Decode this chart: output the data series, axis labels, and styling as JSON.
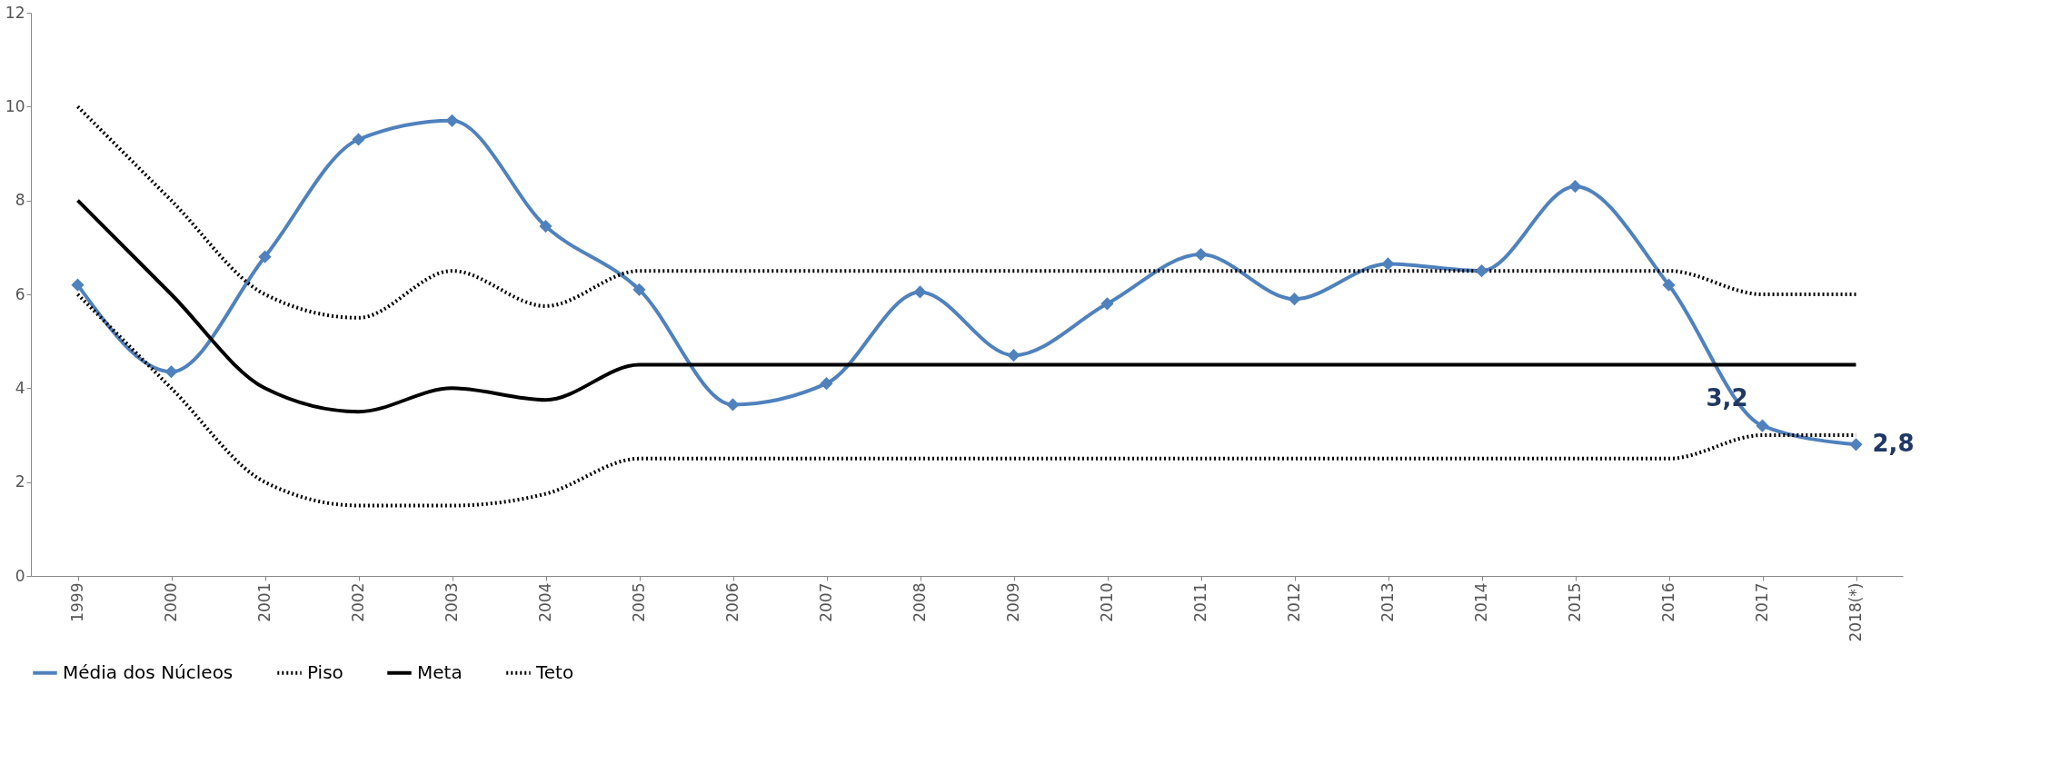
{
  "chart_data": {
    "type": "line",
    "categories": [
      "1999",
      "2000",
      "2001",
      "2002",
      "2003",
      "2004",
      "2005",
      "2006",
      "2007",
      "2008",
      "2009",
      "2010",
      "2011",
      "2012",
      "2013",
      "2014",
      "2015",
      "2016",
      "2017",
      "2018(*)"
    ],
    "series": [
      {
        "name": "Média dos Núcleos",
        "color": "#4f81bd",
        "marker": "diamond",
        "line_style": "solid",
        "values": [
          6.2,
          4.35,
          6.8,
          9.3,
          9.7,
          7.45,
          6.1,
          3.65,
          4.1,
          6.05,
          4.7,
          5.8,
          6.85,
          5.9,
          6.65,
          6.5,
          8.3,
          6.2,
          3.2,
          2.8
        ]
      },
      {
        "name": "Piso",
        "color": "#000000",
        "marker": "none",
        "line_style": "dotted",
        "values": [
          6,
          4,
          2,
          1.5,
          1.5,
          1.75,
          2.5,
          2.5,
          2.5,
          2.5,
          2.5,
          2.5,
          2.5,
          2.5,
          2.5,
          2.5,
          2.5,
          2.5,
          3,
          3
        ]
      },
      {
        "name": "Meta",
        "color": "#000000",
        "marker": "none",
        "line_style": "solid",
        "values": [
          8,
          6,
          4,
          3.5,
          4,
          3.75,
          4.5,
          4.5,
          4.5,
          4.5,
          4.5,
          4.5,
          4.5,
          4.5,
          4.5,
          4.5,
          4.5,
          4.5,
          4.5,
          4.5
        ]
      },
      {
        "name": "Teto",
        "color": "#000000",
        "marker": "none",
        "line_style": "dotted",
        "values": [
          10,
          8,
          6,
          5.5,
          6.5,
          5.75,
          6.5,
          6.5,
          6.5,
          6.5,
          6.5,
          6.5,
          6.5,
          6.5,
          6.5,
          6.5,
          6.5,
          6.5,
          6,
          6
        ]
      }
    ],
    "ylim": [
      0,
      12
    ],
    "yticks": [
      0,
      2,
      4,
      6,
      8,
      10,
      12
    ],
    "grid": false,
    "legend": "bottom",
    "annotations": [
      {
        "text": "3,2",
        "x": "2017",
        "y": 3.2
      },
      {
        "text": "2,8",
        "x": "2018(*)",
        "y": 2.8
      }
    ]
  }
}
